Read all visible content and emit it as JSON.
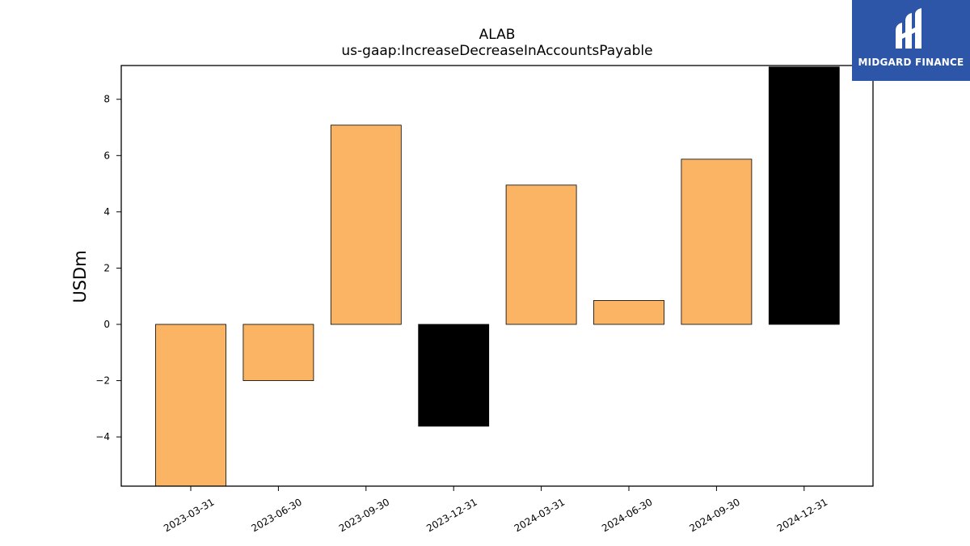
{
  "chart_data": {
    "type": "bar",
    "title": "ALAB",
    "subtitle": "us-gaap:IncreaseDecreaseInAccountsPayable",
    "xlabel": "",
    "ylabel": "USDm",
    "categories": [
      "2023-03-31",
      "2023-06-30",
      "2023-09-30",
      "2023-12-31",
      "2024-03-31",
      "2024-06-30",
      "2024-09-30",
      "2024-12-31"
    ],
    "values": [
      -5.75,
      -2.0,
      7.08,
      -3.62,
      4.95,
      0.85,
      5.87,
      9.15
    ],
    "bar_colors": [
      "#fbb463",
      "#fbb463",
      "#fbb463",
      "#000000",
      "#fbb463",
      "#fbb463",
      "#fbb463",
      "#000000"
    ],
    "ylim": [
      -5.75,
      9.2
    ],
    "yticks": [
      -4,
      -2,
      0,
      2,
      4,
      6,
      8
    ],
    "grid": false,
    "legend": false
  },
  "logo": {
    "text": "MIDGARD FINANCE",
    "background": "#2e56a8"
  }
}
